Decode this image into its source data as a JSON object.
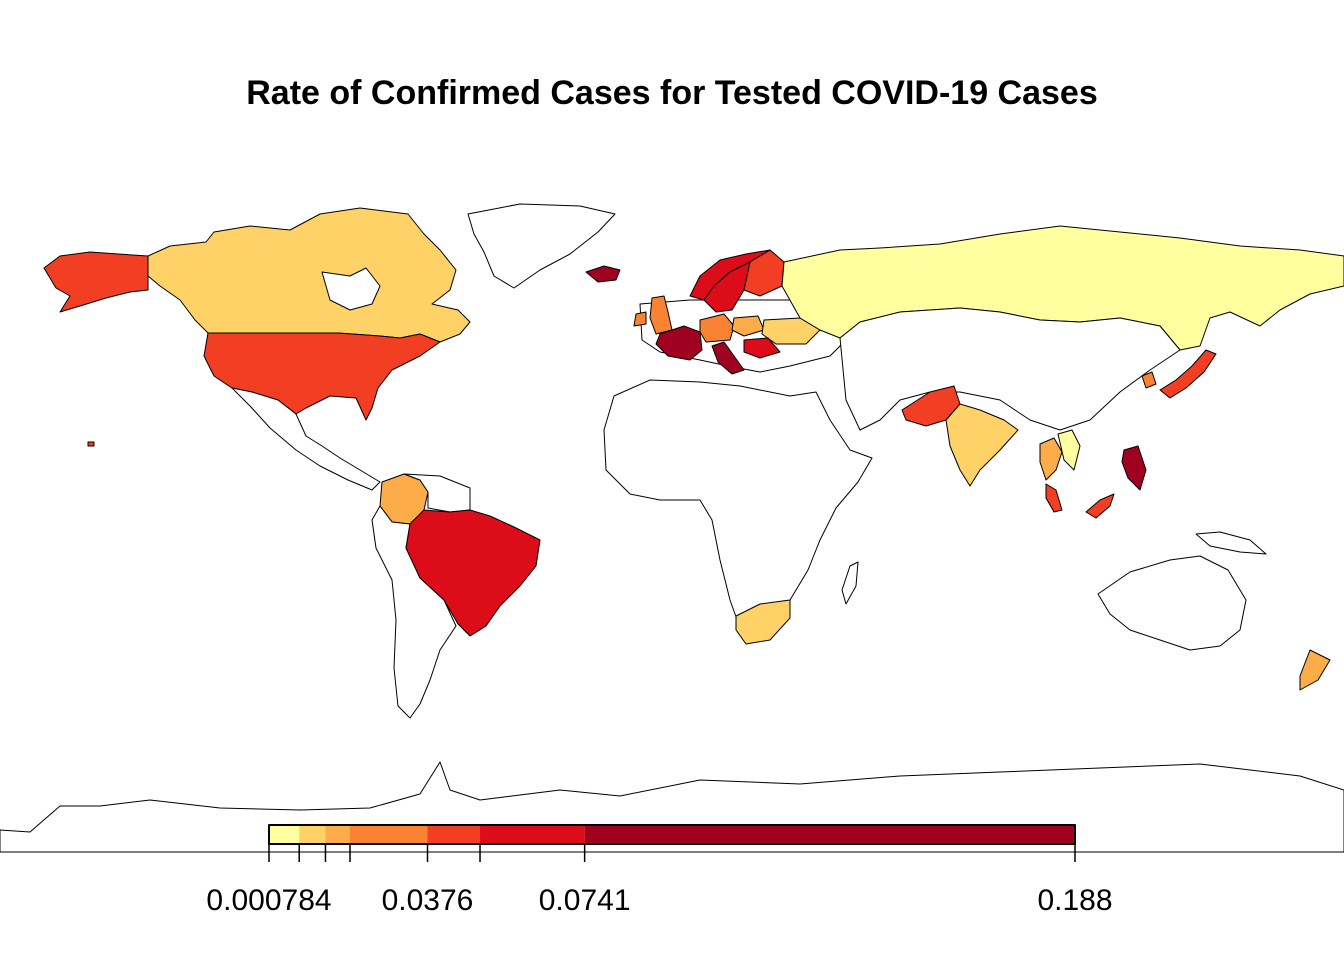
{
  "title": "Rate of Confirmed Cases for Tested COVID-19 Cases",
  "legend": {
    "breaks": [
      0.000784,
      0.0078,
      0.0139,
      0.0196,
      0.0376,
      0.0498,
      0.0741,
      0.188
    ],
    "labels": [
      "0.000784",
      "0.0376",
      "0.0741",
      "0.188"
    ],
    "label_break_index": [
      0,
      4,
      6,
      7
    ],
    "colors": [
      "#FFFFA0",
      "#FED266",
      "#FDAC4A",
      "#F98332",
      "#F23F24",
      "#DC0C19",
      "#A10121"
    ]
  },
  "countries": [
    {
      "name": "Russia",
      "class": 0
    },
    {
      "name": "Alaska (USA)",
      "class": 4
    },
    {
      "name": "Canada",
      "class": 1
    },
    {
      "name": "United States",
      "class": 4
    },
    {
      "name": "Colombia",
      "class": 2
    },
    {
      "name": "Brazil",
      "class": 5
    },
    {
      "name": "Iceland",
      "class": 6
    },
    {
      "name": "Norway",
      "class": 5
    },
    {
      "name": "Sweden",
      "class": 5
    },
    {
      "name": "Finland",
      "class": 4
    },
    {
      "name": "United Kingdom",
      "class": 3
    },
    {
      "name": "Ireland",
      "class": 3
    },
    {
      "name": "France",
      "class": 6
    },
    {
      "name": "Italy",
      "class": 6
    },
    {
      "name": "Germany",
      "class": 3
    },
    {
      "name": "Poland",
      "class": 2
    },
    {
      "name": "Ukraine",
      "class": 1
    },
    {
      "name": "Pakistan",
      "class": 4
    },
    {
      "name": "India",
      "class": 1
    },
    {
      "name": "Thailand",
      "class": 2
    },
    {
      "name": "Vietnam",
      "class": 0
    },
    {
      "name": "Malaysia",
      "class": 4
    },
    {
      "name": "Philippines",
      "class": 6
    },
    {
      "name": "Japan",
      "class": 4
    },
    {
      "name": "South Korea",
      "class": 3
    },
    {
      "name": "South Africa",
      "class": 1
    },
    {
      "name": "New Zealand",
      "class": 2
    }
  ]
}
